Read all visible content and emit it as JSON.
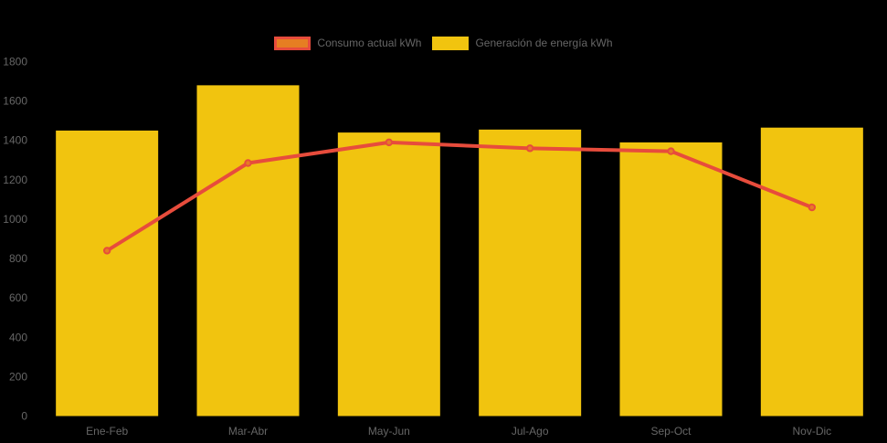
{
  "chart_data": {
    "type": "bar",
    "title": "",
    "categories": [
      "Ene-Feb",
      "Mar-Abr",
      "May-Jun",
      "Jul-Ago",
      "Sep-Oct",
      "Nov-Dic"
    ],
    "series": [
      {
        "name": "Consumo actual kWh",
        "type": "line",
        "values": [
          840,
          1285,
          1390,
          1360,
          1345,
          1060
        ]
      },
      {
        "name": "Generación de energía kWh",
        "type": "bar",
        "values": [
          1450,
          1680,
          1440,
          1455,
          1390,
          1465
        ]
      }
    ],
    "xlabel": "",
    "ylabel": "",
    "ylim": [
      0,
      1800
    ],
    "yticks": [
      0,
      200,
      400,
      600,
      800,
      1000,
      1200,
      1400,
      1600,
      1800
    ],
    "legend_position": "top-center",
    "grid": false
  },
  "colors": {
    "background": "#000000",
    "bar_fill": "#f1c40f",
    "line_stroke": "#e74c3c",
    "point_fill": "#e67e22",
    "axis_text": "#666666",
    "legend_text": "#666666"
  }
}
